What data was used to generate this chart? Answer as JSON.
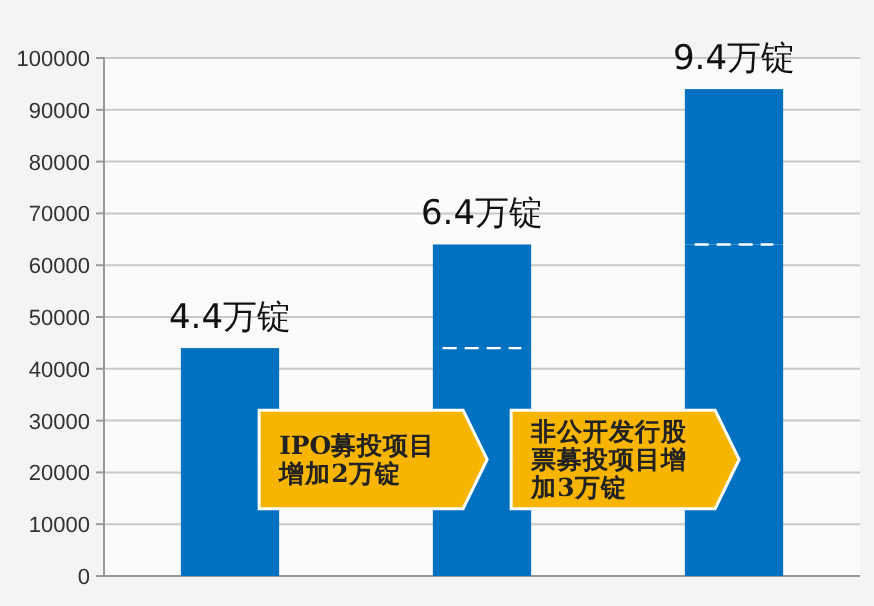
{
  "chart_data": {
    "type": "bar",
    "categories": [
      null,
      null,
      null
    ],
    "stacked": true,
    "series": [
      {
        "color": "#0070c0",
        "values": [
          44000,
          44000,
          64000
        ]
      },
      {
        "color": "#0070c0",
        "values": [
          null,
          20000,
          30000
        ]
      }
    ],
    "ylim": [
      0,
      100000
    ],
    "yticks": [
      0,
      10000,
      20000,
      30000,
      40000,
      50000,
      60000,
      70000,
      80000,
      90000,
      100000
    ],
    "grid": "y",
    "annotations": [
      {
        "text": "4.4万锭",
        "y": 44000
      },
      {
        "text": "6.4万锭",
        "y": 64000
      },
      {
        "text": "9.4万锭",
        "y": 94000
      },
      "IPO募投项目增加2万锭",
      "非公开发行股票募投项目增加3万锭"
    ]
  }
}
